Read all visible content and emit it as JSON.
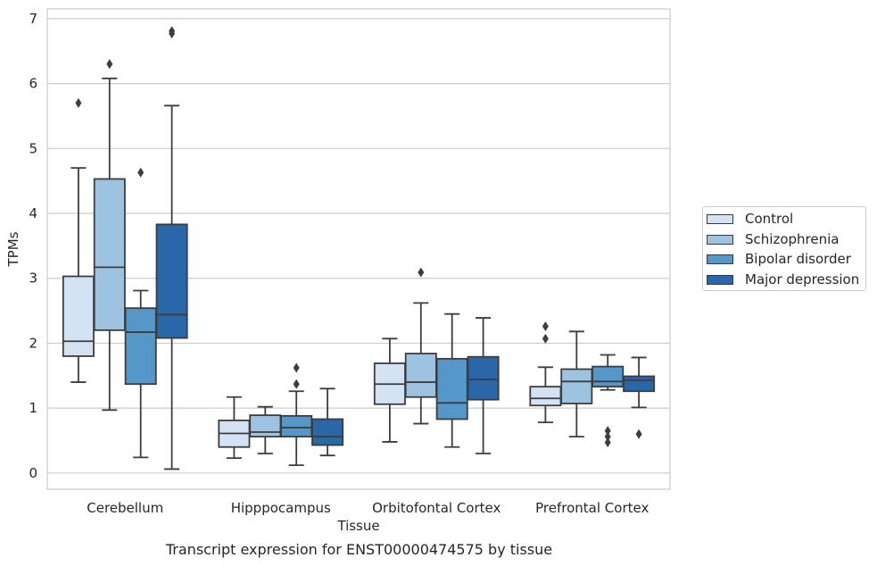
{
  "chart_data": {
    "type": "boxplot",
    "title": "Transcript expression for ENST00000474575 by tissue",
    "xlabel": "Tissue",
    "ylabel": "TPMs",
    "ylim": [
      -0.25,
      7.15
    ],
    "yticks": [
      0,
      1,
      2,
      3,
      4,
      5,
      6,
      7
    ],
    "grid": true,
    "legend_placement": "right",
    "categories": [
      "Cerebellum",
      "Hipppocampus",
      "Orbitofontal Cortex",
      "Prefrontal Cortex"
    ],
    "series": [
      {
        "name": "Control",
        "color": "#d4e3f4",
        "boxes": [
          {
            "whislo": 1.4,
            "q1": 1.8,
            "med": 2.03,
            "q3": 3.03,
            "whishi": 4.7,
            "fliers": [
              5.7
            ]
          },
          {
            "whislo": 0.23,
            "q1": 0.4,
            "med": 0.61,
            "q3": 0.81,
            "whishi": 1.17,
            "fliers": []
          },
          {
            "whislo": 0.48,
            "q1": 1.06,
            "med": 1.37,
            "q3": 1.69,
            "whishi": 2.07,
            "fliers": []
          },
          {
            "whislo": 0.78,
            "q1": 1.04,
            "med": 1.15,
            "q3": 1.33,
            "whishi": 1.63,
            "fliers": [
              2.07,
              2.26
            ]
          }
        ]
      },
      {
        "name": "Schizophrenia",
        "color": "#9dc3e0",
        "boxes": [
          {
            "whislo": 0.97,
            "q1": 2.2,
            "med": 3.17,
            "q3": 4.53,
            "whishi": 6.08,
            "fliers": [
              6.3
            ]
          },
          {
            "whislo": 0.3,
            "q1": 0.56,
            "med": 0.63,
            "q3": 0.89,
            "whishi": 1.02,
            "fliers": []
          },
          {
            "whislo": 0.76,
            "q1": 1.17,
            "med": 1.4,
            "q3": 1.84,
            "whishi": 2.62,
            "fliers": [
              3.09
            ]
          },
          {
            "whislo": 0.56,
            "q1": 1.07,
            "med": 1.41,
            "q3": 1.6,
            "whishi": 2.18,
            "fliers": []
          }
        ]
      },
      {
        "name": "Bipolar disorder",
        "color": "#5497c8",
        "boxes": [
          {
            "whislo": 0.24,
            "q1": 1.37,
            "med": 2.17,
            "q3": 2.54,
            "whishi": 2.81,
            "fliers": [
              4.63
            ]
          },
          {
            "whislo": 0.12,
            "q1": 0.56,
            "med": 0.7,
            "q3": 0.88,
            "whishi": 1.26,
            "fliers": [
              1.37,
              1.62
            ]
          },
          {
            "whislo": 0.4,
            "q1": 0.83,
            "med": 1.08,
            "q3": 1.76,
            "whishi": 2.45,
            "fliers": []
          },
          {
            "whislo": 1.28,
            "q1": 1.33,
            "med": 1.41,
            "q3": 1.64,
            "whishi": 1.82,
            "fliers": [
              0.47,
              0.56,
              0.65
            ]
          }
        ]
      },
      {
        "name": "Major depression",
        "color": "#2a67a8",
        "boxes": [
          {
            "whislo": 0.06,
            "q1": 2.08,
            "med": 2.44,
            "q3": 3.83,
            "whishi": 5.66,
            "fliers": [
              6.77,
              6.81
            ]
          },
          {
            "whislo": 0.27,
            "q1": 0.43,
            "med": 0.56,
            "q3": 0.83,
            "whishi": 1.3,
            "fliers": []
          },
          {
            "whislo": 0.3,
            "q1": 1.13,
            "med": 1.44,
            "q3": 1.79,
            "whishi": 2.39,
            "fliers": []
          },
          {
            "whislo": 1.01,
            "q1": 1.26,
            "med": 1.43,
            "q3": 1.49,
            "whishi": 1.78,
            "fliers": [
              0.6
            ]
          }
        ]
      }
    ]
  }
}
